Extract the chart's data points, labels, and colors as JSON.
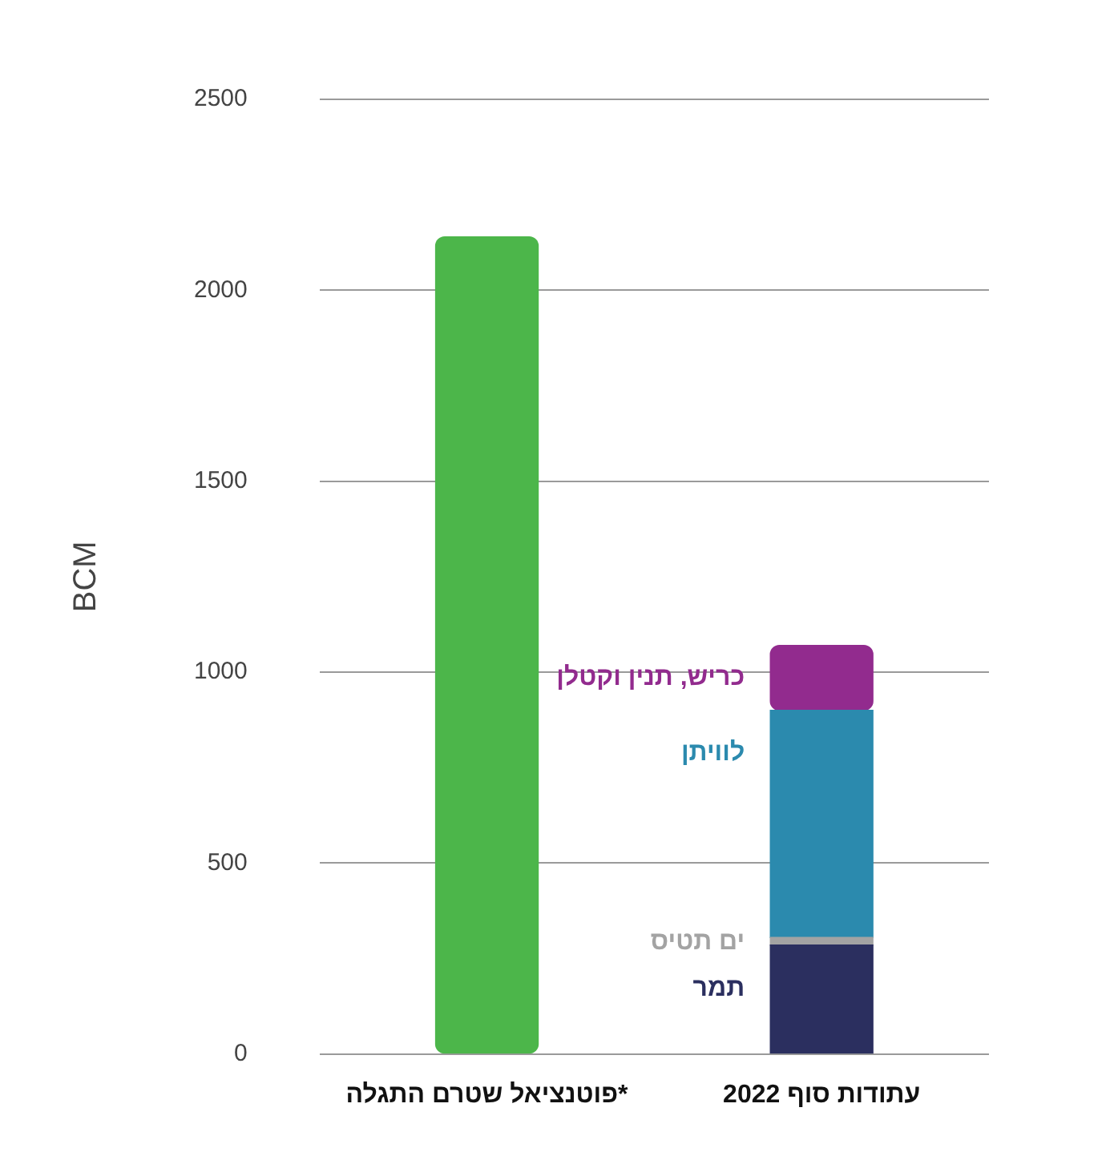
{
  "chart_data": {
    "type": "bar",
    "stacked": true,
    "ylabel": "BCM",
    "categories": [
      "פוטנציאל שטרם התגלה*",
      "עתודות סוף 2022"
    ],
    "ylim": [
      0,
      2500
    ],
    "yticks": [
      0,
      500,
      1000,
      1500,
      2000,
      2500
    ],
    "grid": "y",
    "legend": false,
    "series": [
      {
        "color": "#4cb64a",
        "values": [
          2140,
          null
        ]
      },
      {
        "name": "תמר",
        "color": "#2b2f5f",
        "values": [
          null,
          285
        ]
      },
      {
        "name": "ים תטיס",
        "color": "#a3a3a3",
        "values": [
          null,
          20
        ]
      },
      {
        "name": "לוויתן",
        "color": "#2b8aae",
        "values": [
          null,
          595
        ]
      },
      {
        "name": "כריש, תנין וקטלן",
        "color": "#922b8e",
        "values": [
          null,
          170
        ]
      }
    ]
  }
}
